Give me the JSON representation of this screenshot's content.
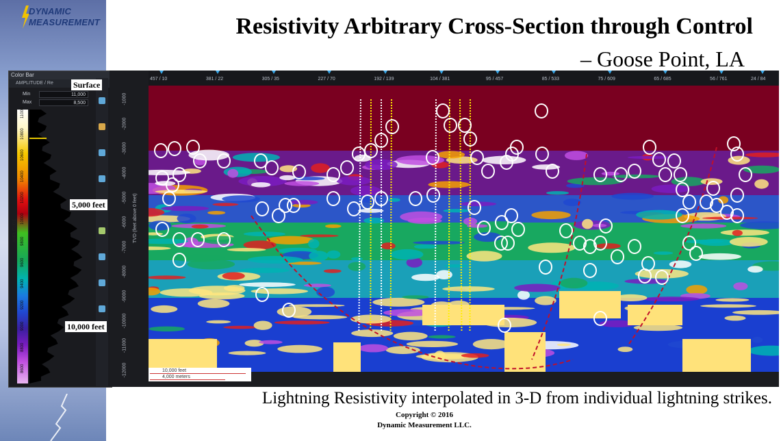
{
  "logo": {
    "line1": "DYNAMIC",
    "line2": "MEASUREMENT"
  },
  "title": "Resistivity Arbitrary Cross-Section through Control",
  "subtitle": "– Goose Point, LA",
  "colorbar": {
    "header": "Color Bar",
    "subheader": "AMPLITUDE / Re",
    "min_label": "Min",
    "max_label": "Max",
    "min_value": "11,000",
    "max_value": "8,500",
    "top_value": "11,000",
    "axis_label": "AMPLITUDE",
    "ticks": [
      "11000",
      "10800",
      "10600",
      "10400",
      "10200",
      "10000",
      "9800",
      "9600",
      "9400",
      "9200",
      "9000",
      "8800",
      "8600"
    ]
  },
  "top_axis_labels": [
    "457 / 10",
    "381 / 22",
    "305 / 35",
    "227 / 70",
    "192 / 139",
    "104 / 381",
    "95 / 457",
    "85 / 533",
    "75 / 609",
    "65 / 685",
    "56 / 761",
    "24 / 84"
  ],
  "depth_axis": {
    "label": "TVD (feet above 0 feet)",
    "ticks": [
      "-1000",
      "-2000",
      "-3000",
      "-4000",
      "-5000",
      "-6000",
      "-7000",
      "-8000",
      "-9000",
      "-10000",
      "-11000",
      "-12000"
    ]
  },
  "depth_callouts": {
    "surface": "Surface",
    "mid": "5,000 feet",
    "deep": "10,000 feet"
  },
  "scale_bar": {
    "feet": "10,000 feet",
    "meters": "4,000 meters"
  },
  "caption": "Lightning Resistivity interpolated in 3-D from individual lightning strikes.",
  "copyright": {
    "line1": "Copyright © 2016",
    "line2": "Dynamic Measurement LLC."
  },
  "colors": {
    "background_top": "#7a0020",
    "low_resistivity": "#1a3fd0",
    "high_resistivity": "#ffe680",
    "mid": "#18a860",
    "strike_marker": "#ffffff",
    "fault_line": "#c0102a"
  }
}
